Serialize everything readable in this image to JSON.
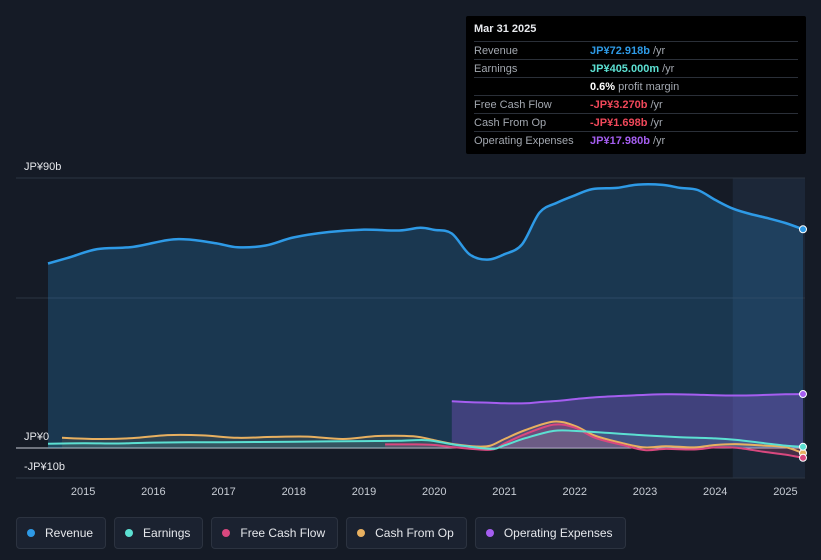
{
  "tooltip": {
    "date": "Mar 31 2025",
    "rows": [
      {
        "label": "Revenue",
        "value": "JP¥72.918b",
        "unit": "/yr",
        "color": "#2e9ae6"
      },
      {
        "label": "Earnings",
        "value": "JP¥405.000m",
        "unit": "/yr",
        "color": "#5ce0d2"
      },
      {
        "label": "",
        "value": "0.6%",
        "unit": "profit margin",
        "color": "#ffffff"
      },
      {
        "label": "Free Cash Flow",
        "value": "-JP¥3.270b",
        "unit": "/yr",
        "color": "#f0485a"
      },
      {
        "label": "Cash From Op",
        "value": "-JP¥1.698b",
        "unit": "/yr",
        "color": "#f0485a"
      },
      {
        "label": "Operating Expenses",
        "value": "JP¥17.980b",
        "unit": "/yr",
        "color": "#a55ef0"
      }
    ]
  },
  "legend": [
    {
      "label": "Revenue",
      "color": "#2e9ae6"
    },
    {
      "label": "Earnings",
      "color": "#5ce0d2"
    },
    {
      "label": "Free Cash Flow",
      "color": "#d9487f"
    },
    {
      "label": "Cash From Op",
      "color": "#e8b060"
    },
    {
      "label": "Operating Expenses",
      "color": "#a55ef0"
    }
  ],
  "chart_data": {
    "type": "area",
    "ylim": [
      -10,
      90
    ],
    "y_tick_labels": [
      {
        "value": 90,
        "label": "JP¥90b"
      },
      {
        "value": 0,
        "label": "JP¥0"
      },
      {
        "value": -10,
        "label": "-JP¥10b"
      }
    ],
    "x_tick_labels": [
      "2015",
      "2016",
      "2017",
      "2018",
      "2019",
      "2020",
      "2021",
      "2022",
      "2023",
      "2024",
      "2025"
    ],
    "x_tick_values": [
      2015,
      2016,
      2017,
      2018,
      2019,
      2020,
      2021,
      2022,
      2023,
      2024,
      2025
    ],
    "xlim": [
      2014.2,
      2025.4
    ],
    "highlight_from": 2024.25,
    "series": [
      {
        "name": "Revenue",
        "color": "#2e9ae6",
        "x": [
          2014.5,
          2014.8,
          2015.2,
          2015.7,
          2016.2,
          2016.5,
          2016.9,
          2017.2,
          2017.6,
          2018.0,
          2018.5,
          2019.0,
          2019.5,
          2019.8,
          2020.0,
          2020.25,
          2020.5,
          2020.75,
          2021.0,
          2021.25,
          2021.5,
          2021.75,
          2022.0,
          2022.25,
          2022.6,
          2022.9,
          2023.25,
          2023.5,
          2023.75,
          2024.0,
          2024.25,
          2024.5,
          2024.75,
          2025.0,
          2025.25
        ],
        "values": [
          61.5,
          63.5,
          66.3,
          67,
          69.3,
          69.5,
          68.2,
          66.9,
          67.5,
          70.2,
          72,
          72.8,
          72.5,
          73.4,
          72.7,
          71.5,
          64.6,
          62.8,
          64.6,
          67.9,
          78.5,
          81.8,
          84.2,
          86.3,
          86.7,
          87.8,
          87.7,
          86.7,
          86.0,
          82.7,
          79.8,
          78.0,
          76.6,
          75.0,
          72.9
        ]
      },
      {
        "name": "Operating Expenses",
        "color": "#a55ef0",
        "x": [
          2020.25,
          2020.5,
          2020.8,
          2021.0,
          2021.3,
          2021.5,
          2021.8,
          2022.0,
          2022.3,
          2022.7,
          2023.0,
          2023.3,
          2023.7,
          2024.0,
          2024.3,
          2024.6,
          2025.0,
          2025.25
        ],
        "values": [
          15.6,
          15.3,
          15.1,
          14.9,
          14.9,
          15.3,
          15.8,
          16.3,
          16.9,
          17.4,
          17.7,
          17.9,
          17.8,
          17.6,
          17.5,
          17.6,
          17.9,
          17.98
        ]
      },
      {
        "name": "Cash From Op",
        "color": "#e8b060",
        "x": [
          2014.7,
          2015.2,
          2015.7,
          2016.2,
          2016.7,
          2017.2,
          2017.7,
          2018.2,
          2018.7,
          2019.2,
          2019.7,
          2020.0,
          2020.3,
          2020.6,
          2020.8,
          2021.0,
          2021.3,
          2021.7,
          2022.0,
          2022.3,
          2022.7,
          2023.0,
          2023.3,
          2023.7,
          2024.0,
          2024.3,
          2024.7,
          2025.0,
          2025.25
        ],
        "values": [
          3.4,
          3.0,
          3.3,
          4.3,
          4.2,
          3.4,
          3.7,
          3.8,
          3.0,
          4.0,
          3.9,
          2.6,
          1.2,
          0.5,
          0.8,
          3.0,
          6.0,
          8.8,
          7.4,
          4.0,
          1.5,
          0.2,
          0.6,
          0.2,
          1.0,
          1.3,
          0.8,
          0.3,
          -1.7
        ]
      },
      {
        "name": "Free Cash Flow",
        "color": "#d9487f",
        "x": [
          2019.3,
          2019.7,
          2020.0,
          2020.3,
          2020.8,
          2021.0,
          2021.3,
          2021.7,
          2022.0,
          2022.3,
          2022.7,
          2023.0,
          2023.3,
          2023.7,
          2024.0,
          2024.3,
          2024.7,
          2025.0,
          2025.25
        ],
        "values": [
          1.2,
          1.2,
          1.0,
          0.2,
          -0.6,
          1.5,
          4.7,
          7.8,
          6.8,
          3.3,
          0.9,
          -0.7,
          -0.3,
          -0.5,
          0.2,
          0.1,
          -1.3,
          -2.2,
          -3.27
        ]
      },
      {
        "name": "Earnings",
        "color": "#5ce0d2",
        "x": [
          2014.5,
          2015.0,
          2015.5,
          2016.0,
          2016.5,
          2017.0,
          2017.5,
          2018.0,
          2018.5,
          2019.0,
          2019.5,
          2019.9,
          2020.3,
          2020.8,
          2021.0,
          2021.3,
          2021.7,
          2022.0,
          2022.5,
          2023.0,
          2023.5,
          2024.0,
          2024.3,
          2024.7,
          2025.0,
          2025.25
        ],
        "values": [
          1.4,
          1.6,
          1.5,
          1.8,
          1.9,
          1.9,
          2.0,
          2.1,
          2.2,
          2.3,
          2.4,
          2.6,
          1.1,
          -0.3,
          0.9,
          3.3,
          5.7,
          5.7,
          5.0,
          4.2,
          3.6,
          3.2,
          2.7,
          1.6,
          0.8,
          0.4
        ]
      }
    ]
  }
}
